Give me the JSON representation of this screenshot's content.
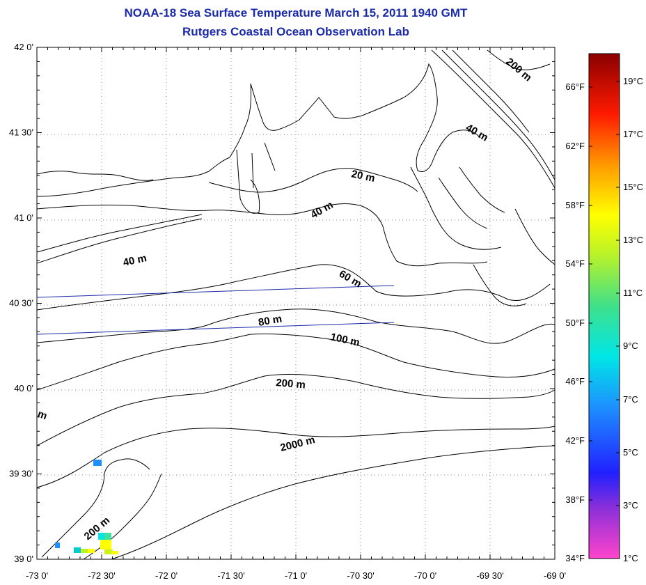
{
  "header": {
    "title": "NOAA-18 Sea Surface Temperature March 15, 2011 1940 GMT",
    "subtitle": "Rutgers Coastal Ocean Observation Lab"
  },
  "axes": {
    "lat_labels": [
      "42 0'",
      "41 30'",
      "41 0'",
      "40 30'",
      "40 0'",
      "39 30'",
      "39 0'"
    ],
    "lon_labels": [
      "-73 0'",
      "-72 30'",
      "-72 0'",
      "-71 30'",
      "-71 0'",
      "-70 30'",
      "-70 0'",
      "-69 30'",
      "-69 0'"
    ]
  },
  "contour_labels": [
    "200 m",
    "40 m",
    "20 m",
    "40 m",
    "40 m",
    "60 m",
    "80 m",
    "100 m",
    "200 m",
    "m",
    "2000 m",
    "200 m"
  ],
  "colorbar": {
    "fahrenheit": [
      "66°F",
      "62°F",
      "58°F",
      "54°F",
      "50°F",
      "46°F",
      "42°F",
      "38°F",
      "34°F"
    ],
    "celsius": [
      "19°C",
      "17°C",
      "15°C",
      "13°C",
      "11°C",
      "9°C",
      "7°C",
      "5°C",
      "3°C",
      "1°C"
    ]
  }
}
